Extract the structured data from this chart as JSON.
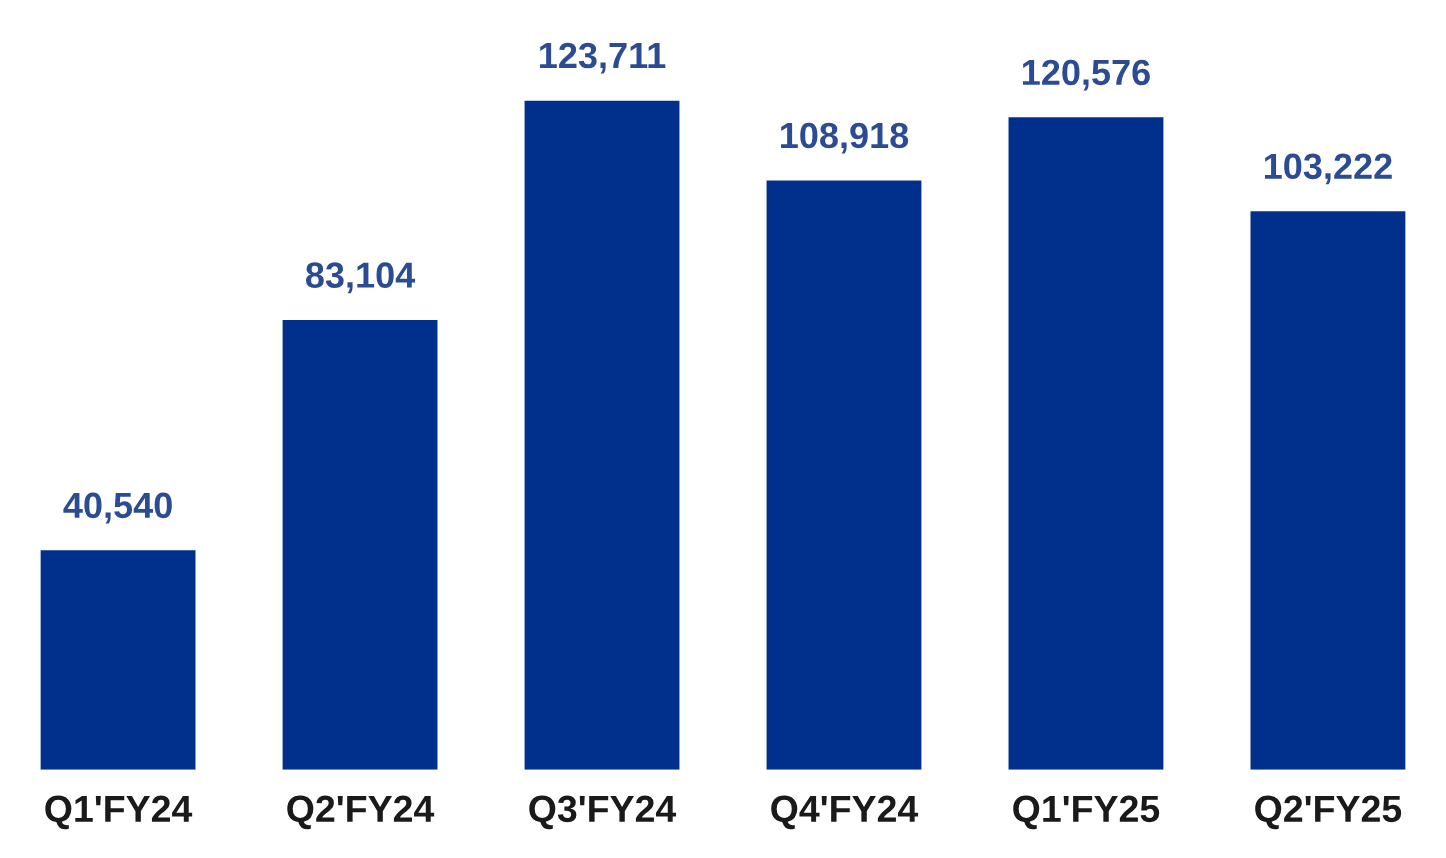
{
  "chart_data": {
    "type": "bar",
    "categories": [
      "Q1'FY24",
      "Q2'FY24",
      "Q3'FY24",
      "Q4'FY24",
      "Q1'FY25",
      "Q2'FY25"
    ],
    "values": [
      40540,
      83104,
      123711,
      108918,
      120576,
      103222
    ],
    "value_labels": [
      "40,540",
      "83,104",
      "123,711",
      "108,918",
      "120,576",
      "103,222"
    ],
    "color": "#00308c",
    "tick_labels": "x",
    "grid": false
  }
}
